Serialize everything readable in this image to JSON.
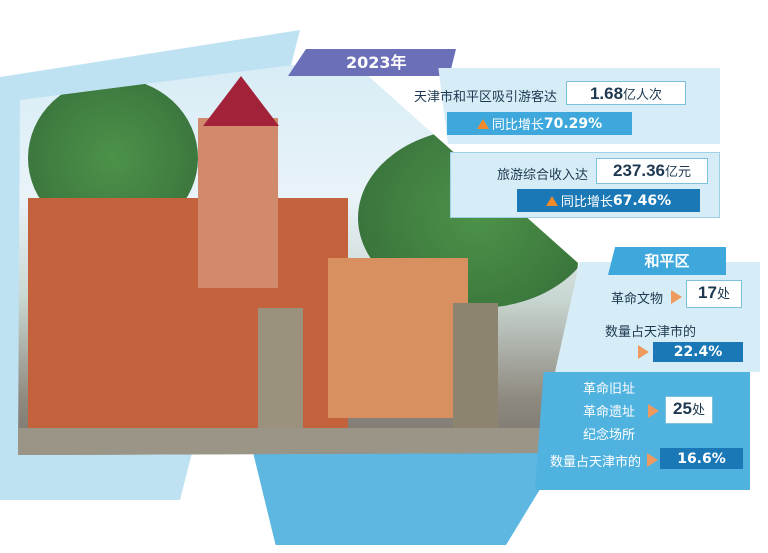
{
  "year_banner": "2023年",
  "tourists": {
    "label": "天津市和平区吸引游客达",
    "value": "1.68",
    "unit": "亿人次",
    "growth_prefix": "同比增长",
    "growth": "70.29%"
  },
  "revenue": {
    "label": "旅游综合收入达",
    "value": "237.36",
    "unit": "亿元",
    "growth_prefix": "同比增长",
    "growth": "67.46%"
  },
  "district": {
    "title": "和平区",
    "relics": {
      "label": "革命文物",
      "value": "17",
      "unit": "处",
      "share_label": "数量占天津市的",
      "share": "22.4%"
    },
    "sites": {
      "labels": [
        "革命旧址",
        "革命遗址",
        "纪念场所"
      ],
      "value": "25",
      "unit": "处",
      "share_label": "数量占天津市的",
      "share": "16.6%"
    }
  },
  "colors": {
    "banner": "#6b6fb8",
    "light_panel": "#d6edf7",
    "mid_blue": "#3ea8dc",
    "dark_blue": "#1a78b6",
    "arrow": "#ee9a5e"
  }
}
